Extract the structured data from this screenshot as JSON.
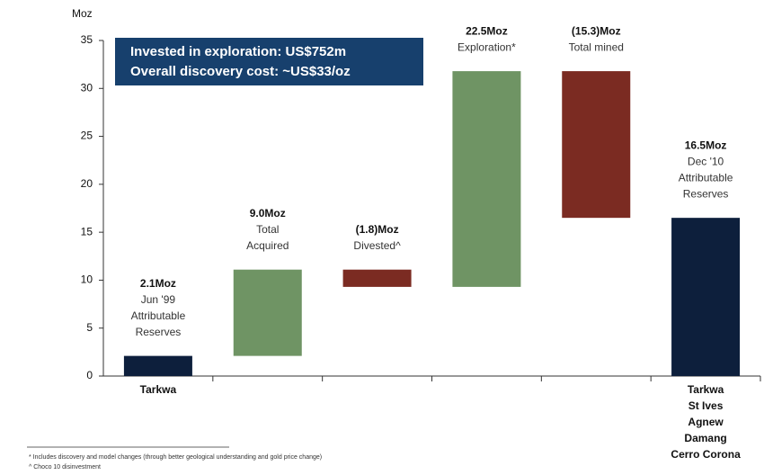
{
  "chart_data": {
    "type": "waterfall",
    "y_label": "Moz",
    "categories": [
      [
        "Tarkwa"
      ],
      null,
      null,
      null,
      null,
      [
        "Tarkwa",
        "St Ives",
        "Agnew",
        "Damang",
        "Cerro Corona"
      ]
    ],
    "values": [
      2.1,
      9.0,
      -1.8,
      22.5,
      -15.3,
      16.5
    ],
    "value_labels": [
      "2.1Moz",
      "9.0Moz",
      "(1.8)Moz",
      "22.5Moz",
      "(15.3)Moz",
      "16.5Moz"
    ],
    "descriptions": [
      [
        "Jun '99",
        "Attributable",
        "Reserves"
      ],
      [
        "Total",
        "Acquired"
      ],
      [
        "Divested^"
      ],
      [
        "Exploration*"
      ],
      [
        "Total mined"
      ],
      [
        "Dec '10",
        "Attributable",
        "Reserves"
      ]
    ],
    "is_total": [
      true,
      false,
      false,
      false,
      false,
      true
    ],
    "colors": [
      "#0d1f3c",
      "#6f9464",
      "#7b2b22",
      "#6f9464",
      "#7b2b22",
      "#0d1f3c"
    ],
    "ylim": [
      0,
      35
    ],
    "yticks": [
      0,
      5,
      10,
      15,
      20,
      25,
      30,
      35
    ],
    "annotation": [
      "Invested in exploration:  US$752m",
      "Overall discovery cost: ~US$33/oz"
    ],
    "footnotes": [
      "*  Includes discovery and model changes (through better geological understanding and gold price change)",
      "^  Choco 10 disinvestment"
    ]
  }
}
